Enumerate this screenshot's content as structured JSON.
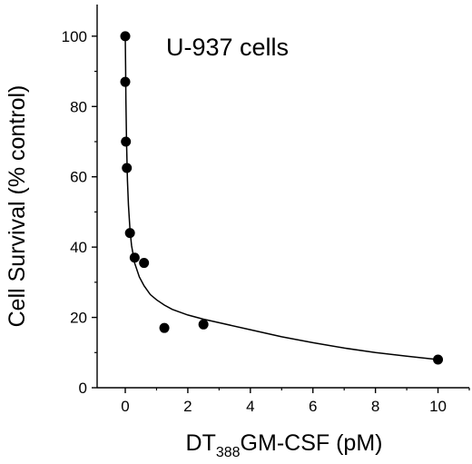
{
  "chart_data": {
    "type": "scatter",
    "title": "",
    "annotation": "U-937 cells",
    "xlabel": {
      "prefix": "DT",
      "subscript": "388",
      "suffix": "GM-CSF (pM)"
    },
    "ylabel": "Cell Survival (% control)",
    "xlim": [
      -0.9,
      11
    ],
    "ylim": [
      0,
      109
    ],
    "x_ticks": [
      0,
      2,
      4,
      6,
      8,
      10
    ],
    "x_tick_labels": [
      "0",
      "2",
      "4",
      "6",
      "8",
      "10"
    ],
    "y_ticks": [
      0,
      20,
      40,
      60,
      80,
      100
    ],
    "y_tick_labels": [
      "0",
      "20",
      "40",
      "60",
      "80",
      "100"
    ],
    "grid": false,
    "legend": "none",
    "series": [
      {
        "marker": "filled-circle",
        "color": "#000000",
        "points": [
          {
            "x": 0.0,
            "y": 100
          },
          {
            "x": 0.0,
            "y": 87
          },
          {
            "x": 0.02,
            "y": 70
          },
          {
            "x": 0.05,
            "y": 62.5
          },
          {
            "x": 0.15,
            "y": 44
          },
          {
            "x": 0.3,
            "y": 37
          },
          {
            "x": 0.6,
            "y": 35.5
          },
          {
            "x": 1.25,
            "y": 17
          },
          {
            "x": 2.5,
            "y": 18
          },
          {
            "x": 10.0,
            "y": 8
          }
        ]
      }
    ],
    "fit_curve": {
      "color": "#000000",
      "points": [
        [
          0.0,
          100
        ],
        [
          0.01,
          91
        ],
        [
          0.02,
          82
        ],
        [
          0.04,
          70
        ],
        [
          0.07,
          59
        ],
        [
          0.1,
          52
        ],
        [
          0.15,
          45
        ],
        [
          0.2,
          40.5
        ],
        [
          0.3,
          35.5
        ],
        [
          0.45,
          31.5
        ],
        [
          0.6,
          29
        ],
        [
          0.8,
          26.5
        ],
        [
          1.0,
          25
        ],
        [
          1.25,
          23.5
        ],
        [
          1.5,
          22.3
        ],
        [
          2.0,
          20.7
        ],
        [
          2.5,
          19.5
        ],
        [
          3.0,
          18.5
        ],
        [
          4.0,
          16.5
        ],
        [
          5.0,
          14.5
        ],
        [
          6.0,
          12.8
        ],
        [
          7.0,
          11.3
        ],
        [
          8.0,
          10
        ],
        [
          9.0,
          9
        ],
        [
          10.0,
          8
        ]
      ]
    }
  }
}
